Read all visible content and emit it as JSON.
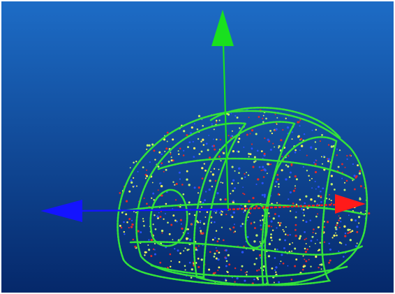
{
  "viewer": {
    "background_top": "#1d6cc6",
    "background_bottom": "#05286a"
  },
  "axes": {
    "x_color": "#ff1a1a",
    "y_color": "#19e01f",
    "z_color": "#1414ff"
  },
  "point_cloud": {
    "contour_color": "#33e23a",
    "point_colors": [
      "#f4f45a",
      "#2a52ff",
      "#e22a2a",
      "#bff06a"
    ]
  }
}
